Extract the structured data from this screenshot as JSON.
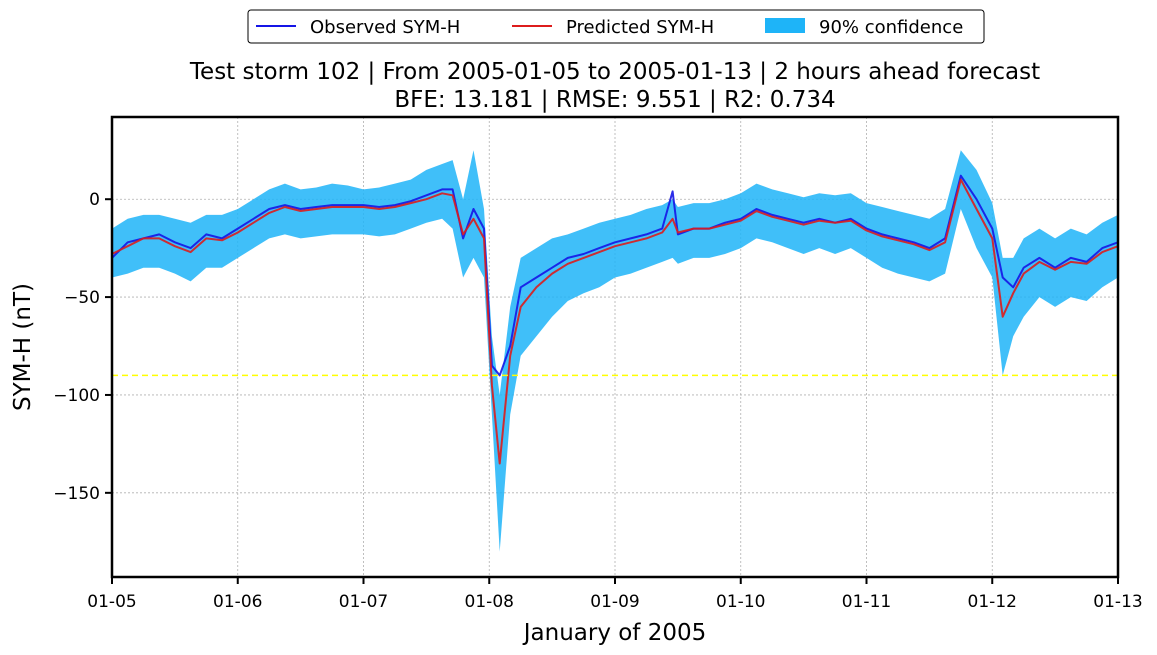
{
  "chart_data": {
    "type": "line",
    "title": "Test storm 102 | From 2005-01-05 to 2005-01-13 | 2 hours ahead forecast",
    "subtitle": "BFE: 13.181 | RMSE: 9.551 | R2: 0.734",
    "xlabel": "January of 2005",
    "ylabel": "SYM-H (nT)",
    "xlim": [
      "2005-01-05",
      "2005-01-13"
    ],
    "ylim": [
      -193,
      42
    ],
    "x_ticks": [
      "01-05",
      "01-06",
      "01-07",
      "01-08",
      "01-09",
      "01-10",
      "01-11",
      "01-12",
      "01-13"
    ],
    "y_ticks": [
      0,
      -50,
      -100,
      -150
    ],
    "y_tick_labels": [
      "0",
      "−50",
      "−100",
      "−150"
    ],
    "grid": true,
    "legend_position": "top-center",
    "threshold": {
      "value": -90,
      "color": "#ffff00",
      "style": "dashed"
    },
    "series": [
      {
        "name": "Observed SYM-H",
        "color": "#1515e6",
        "x": [
          "2005-01-05 00:00",
          "2005-01-05 03:00",
          "2005-01-05 06:00",
          "2005-01-05 09:00",
          "2005-01-05 12:00",
          "2005-01-05 15:00",
          "2005-01-05 18:00",
          "2005-01-05 21:00",
          "2005-01-06 00:00",
          "2005-01-06 03:00",
          "2005-01-06 06:00",
          "2005-01-06 09:00",
          "2005-01-06 12:00",
          "2005-01-06 15:00",
          "2005-01-06 18:00",
          "2005-01-06 21:00",
          "2005-01-07 00:00",
          "2005-01-07 03:00",
          "2005-01-07 06:00",
          "2005-01-07 09:00",
          "2005-01-07 12:00",
          "2005-01-07 15:00",
          "2005-01-07 17:00",
          "2005-01-07 19:00",
          "2005-01-07 21:00",
          "2005-01-07 23:00",
          "2005-01-08 00:30",
          "2005-01-08 02:00",
          "2005-01-08 04:00",
          "2005-01-08 06:00",
          "2005-01-08 09:00",
          "2005-01-08 12:00",
          "2005-01-08 15:00",
          "2005-01-08 18:00",
          "2005-01-08 21:00",
          "2005-01-09 00:00",
          "2005-01-09 03:00",
          "2005-01-09 06:00",
          "2005-01-09 09:00",
          "2005-01-09 11:00",
          "2005-01-09 12:00",
          "2005-01-09 15:00",
          "2005-01-09 18:00",
          "2005-01-09 21:00",
          "2005-01-10 00:00",
          "2005-01-10 03:00",
          "2005-01-10 06:00",
          "2005-01-10 09:00",
          "2005-01-10 12:00",
          "2005-01-10 15:00",
          "2005-01-10 18:00",
          "2005-01-10 21:00",
          "2005-01-11 00:00",
          "2005-01-11 03:00",
          "2005-01-11 06:00",
          "2005-01-11 09:00",
          "2005-01-11 12:00",
          "2005-01-11 15:00",
          "2005-01-11 18:00",
          "2005-01-11 21:00",
          "2005-01-12 00:00",
          "2005-01-12 02:00",
          "2005-01-12 04:00",
          "2005-01-12 06:00",
          "2005-01-12 09:00",
          "2005-01-12 12:00",
          "2005-01-12 15:00",
          "2005-01-12 18:00",
          "2005-01-12 21:00",
          "2005-01-13 00:00"
        ],
        "y": [
          -30,
          -22,
          -20,
          -18,
          -22,
          -25,
          -18,
          -20,
          -15,
          -10,
          -5,
          -3,
          -5,
          -4,
          -3,
          -3,
          -3,
          -4,
          -3,
          -1,
          2,
          5,
          5,
          -20,
          -5,
          -15,
          -85,
          -90,
          -75,
          -45,
          -40,
          -35,
          -30,
          -28,
          -25,
          -22,
          -20,
          -18,
          -15,
          4,
          -18,
          -15,
          -15,
          -12,
          -10,
          -5,
          -8,
          -10,
          -12,
          -10,
          -12,
          -10,
          -15,
          -18,
          -20,
          -22,
          -25,
          -20,
          12,
          0,
          -15,
          -40,
          -45,
          -35,
          -30,
          -35,
          -30,
          -32,
          -25,
          -22
        ]
      },
      {
        "name": "Predicted SYM-H",
        "color": "#dd1c1c",
        "x": [
          "2005-01-05 00:00",
          "2005-01-05 03:00",
          "2005-01-05 06:00",
          "2005-01-05 09:00",
          "2005-01-05 12:00",
          "2005-01-05 15:00",
          "2005-01-05 18:00",
          "2005-01-05 21:00",
          "2005-01-06 00:00",
          "2005-01-06 03:00",
          "2005-01-06 06:00",
          "2005-01-06 09:00",
          "2005-01-06 12:00",
          "2005-01-06 15:00",
          "2005-01-06 18:00",
          "2005-01-06 21:00",
          "2005-01-07 00:00",
          "2005-01-07 03:00",
          "2005-01-07 06:00",
          "2005-01-07 09:00",
          "2005-01-07 12:00",
          "2005-01-07 15:00",
          "2005-01-07 17:00",
          "2005-01-07 19:00",
          "2005-01-07 21:00",
          "2005-01-07 23:00",
          "2005-01-08 00:30",
          "2005-01-08 02:00",
          "2005-01-08 04:00",
          "2005-01-08 06:00",
          "2005-01-08 09:00",
          "2005-01-08 12:00",
          "2005-01-08 15:00",
          "2005-01-08 18:00",
          "2005-01-08 21:00",
          "2005-01-09 00:00",
          "2005-01-09 03:00",
          "2005-01-09 06:00",
          "2005-01-09 09:00",
          "2005-01-09 11:00",
          "2005-01-09 12:00",
          "2005-01-09 15:00",
          "2005-01-09 18:00",
          "2005-01-09 21:00",
          "2005-01-10 00:00",
          "2005-01-10 03:00",
          "2005-01-10 06:00",
          "2005-01-10 09:00",
          "2005-01-10 12:00",
          "2005-01-10 15:00",
          "2005-01-10 18:00",
          "2005-01-10 21:00",
          "2005-01-11 00:00",
          "2005-01-11 03:00",
          "2005-01-11 06:00",
          "2005-01-11 09:00",
          "2005-01-11 12:00",
          "2005-01-11 15:00",
          "2005-01-11 18:00",
          "2005-01-11 21:00",
          "2005-01-12 00:00",
          "2005-01-12 02:00",
          "2005-01-12 04:00",
          "2005-01-12 06:00",
          "2005-01-12 09:00",
          "2005-01-12 12:00",
          "2005-01-12 15:00",
          "2005-01-12 18:00",
          "2005-01-12 21:00",
          "2005-01-13 00:00"
        ],
        "y": [
          -28,
          -24,
          -20,
          -20,
          -24,
          -27,
          -20,
          -21,
          -17,
          -12,
          -7,
          -4,
          -6,
          -5,
          -4,
          -4,
          -4,
          -5,
          -4,
          -2,
          0,
          3,
          2,
          -18,
          -10,
          -20,
          -95,
          -135,
          -80,
          -55,
          -45,
          -38,
          -33,
          -30,
          -27,
          -24,
          -22,
          -20,
          -17,
          -10,
          -17,
          -15,
          -15,
          -13,
          -11,
          -6,
          -9,
          -11,
          -13,
          -11,
          -12,
          -11,
          -16,
          -19,
          -21,
          -23,
          -26,
          -22,
          10,
          -5,
          -20,
          -60,
          -48,
          -38,
          -32,
          -36,
          -32,
          -33,
          -27,
          -24
        ]
      },
      {
        "name": "90% confidence",
        "color": "#1eb4f8",
        "x": [
          "2005-01-05 00:00",
          "2005-01-05 03:00",
          "2005-01-05 06:00",
          "2005-01-05 09:00",
          "2005-01-05 12:00",
          "2005-01-05 15:00",
          "2005-01-05 18:00",
          "2005-01-05 21:00",
          "2005-01-06 00:00",
          "2005-01-06 03:00",
          "2005-01-06 06:00",
          "2005-01-06 09:00",
          "2005-01-06 12:00",
          "2005-01-06 15:00",
          "2005-01-06 18:00",
          "2005-01-06 21:00",
          "2005-01-07 00:00",
          "2005-01-07 03:00",
          "2005-01-07 06:00",
          "2005-01-07 09:00",
          "2005-01-07 12:00",
          "2005-01-07 15:00",
          "2005-01-07 17:00",
          "2005-01-07 19:00",
          "2005-01-07 21:00",
          "2005-01-07 23:00",
          "2005-01-08 00:30",
          "2005-01-08 02:00",
          "2005-01-08 04:00",
          "2005-01-08 06:00",
          "2005-01-08 09:00",
          "2005-01-08 12:00",
          "2005-01-08 15:00",
          "2005-01-08 18:00",
          "2005-01-08 21:00",
          "2005-01-09 00:00",
          "2005-01-09 03:00",
          "2005-01-09 06:00",
          "2005-01-09 09:00",
          "2005-01-09 11:00",
          "2005-01-09 12:00",
          "2005-01-09 15:00",
          "2005-01-09 18:00",
          "2005-01-09 21:00",
          "2005-01-10 00:00",
          "2005-01-10 03:00",
          "2005-01-10 06:00",
          "2005-01-10 09:00",
          "2005-01-10 12:00",
          "2005-01-10 15:00",
          "2005-01-10 18:00",
          "2005-01-10 21:00",
          "2005-01-11 00:00",
          "2005-01-11 03:00",
          "2005-01-11 06:00",
          "2005-01-11 09:00",
          "2005-01-11 12:00",
          "2005-01-11 15:00",
          "2005-01-11 18:00",
          "2005-01-11 21:00",
          "2005-01-12 00:00",
          "2005-01-12 02:00",
          "2005-01-12 04:00",
          "2005-01-12 06:00",
          "2005-01-12 09:00",
          "2005-01-12 12:00",
          "2005-01-12 15:00",
          "2005-01-12 18:00",
          "2005-01-12 21:00",
          "2005-01-13 00:00"
        ],
        "upper": [
          -15,
          -10,
          -8,
          -8,
          -10,
          -12,
          -8,
          -8,
          -5,
          0,
          5,
          8,
          5,
          6,
          8,
          7,
          5,
          6,
          8,
          10,
          15,
          18,
          20,
          0,
          25,
          -5,
          -70,
          -100,
          -55,
          -30,
          -25,
          -20,
          -18,
          -15,
          -12,
          -10,
          -8,
          -5,
          -3,
          0,
          -4,
          -2,
          -2,
          0,
          3,
          8,
          5,
          3,
          1,
          3,
          2,
          3,
          -2,
          -4,
          -6,
          -8,
          -10,
          -5,
          25,
          15,
          -2,
          -30,
          -30,
          -20,
          -15,
          -20,
          -15,
          -18,
          -12,
          -8
        ],
        "lower": [
          -40,
          -38,
          -35,
          -35,
          -38,
          -42,
          -35,
          -35,
          -30,
          -25,
          -20,
          -18,
          -20,
          -19,
          -18,
          -18,
          -18,
          -19,
          -18,
          -15,
          -12,
          -10,
          -15,
          -40,
          -30,
          -40,
          -110,
          -180,
          -110,
          -80,
          -70,
          -60,
          -52,
          -48,
          -45,
          -40,
          -38,
          -35,
          -32,
          -30,
          -33,
          -30,
          -30,
          -28,
          -25,
          -20,
          -22,
          -25,
          -28,
          -25,
          -28,
          -25,
          -30,
          -35,
          -38,
          -40,
          -42,
          -38,
          -5,
          -25,
          -40,
          -90,
          -70,
          -60,
          -50,
          -55,
          -50,
          -52,
          -45,
          -40
        ]
      }
    ]
  },
  "legend": {
    "observed_label": "Observed SYM-H",
    "predicted_label": "Predicted SYM-H",
    "confidence_label": "90% confidence"
  }
}
